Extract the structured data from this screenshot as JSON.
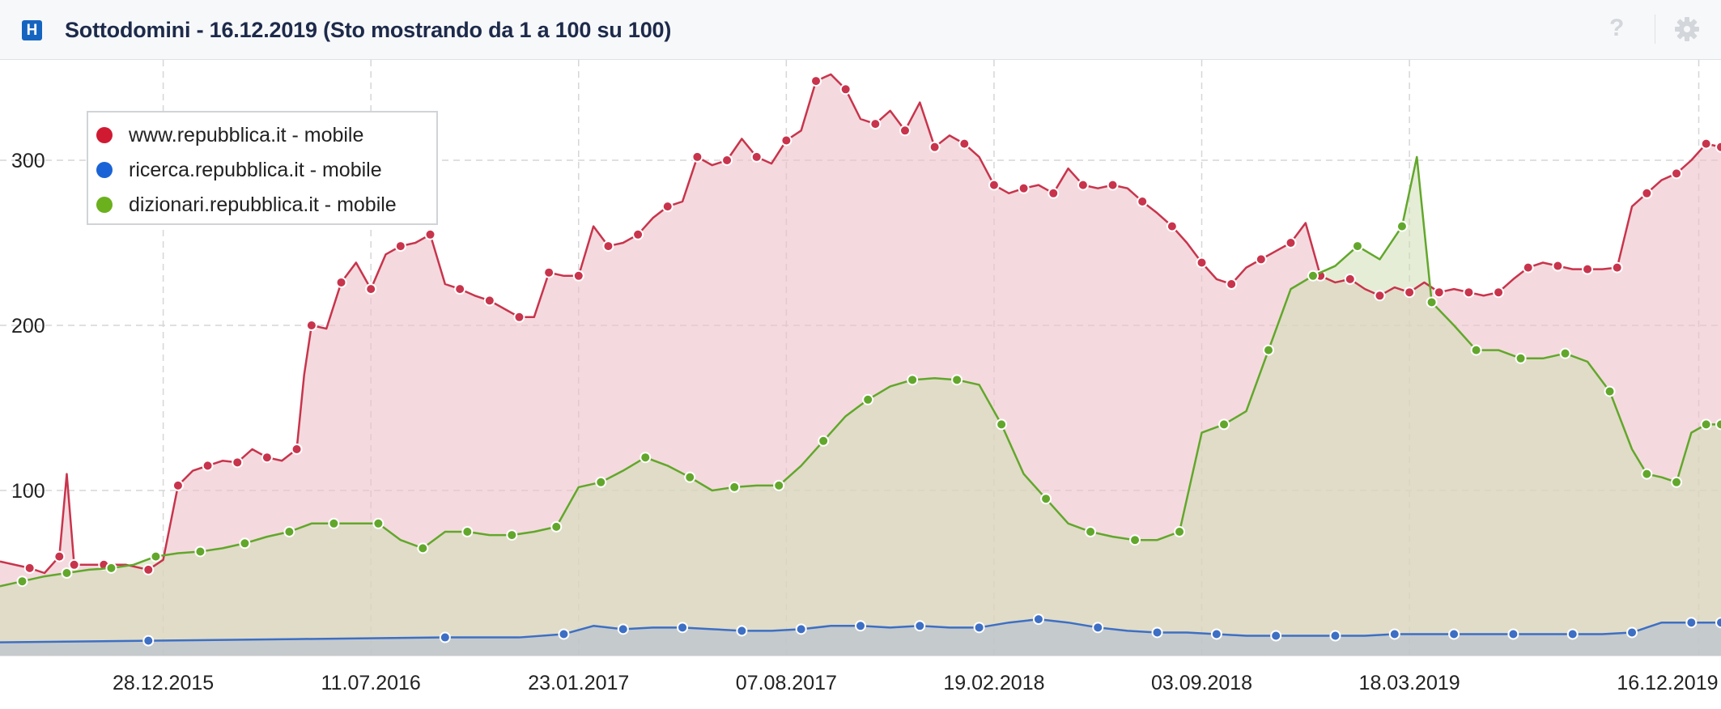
{
  "header": {
    "logo_letter": "H",
    "title": "Sottodomini - 16.12.2019 (Sto mostrando da 1 a 100 su 100)",
    "help_label": "?"
  },
  "colors": {
    "red": "#c8344c",
    "blue": "#3d6fc4",
    "green": "#62a72b",
    "red_dot": "#d01a32",
    "blue_dot": "#1a63d6",
    "green_dot": "#6bb01d"
  },
  "icons": {
    "logo": "logo-icon",
    "help": "help-icon",
    "settings": "gear-icon"
  },
  "chart_data": {
    "type": "area",
    "xlabel": "",
    "ylabel": "",
    "ylim": [
      0,
      350
    ],
    "yticks": [
      100,
      200,
      300
    ],
    "grid": true,
    "legend_position": "top-left",
    "xticks": [
      "28.12.2015",
      "11.07.2016",
      "23.01.2017",
      "07.08.2017",
      "19.02.2018",
      "03.09.2018",
      "18.03.2019",
      "16.12.2019"
    ],
    "xtick_weeks": [
      22,
      50,
      78,
      106,
      134,
      162,
      190,
      229
    ],
    "x_range_weeks": [
      0,
      232
    ],
    "series": [
      {
        "name": "www.repubblica.it - mobile",
        "points": [
          [
            0,
            57
          ],
          [
            4,
            53
          ],
          [
            6,
            50
          ],
          [
            8,
            60
          ],
          [
            9,
            110
          ],
          [
            10,
            55
          ],
          [
            12,
            55
          ],
          [
            14,
            55
          ],
          [
            17,
            55
          ],
          [
            20,
            52
          ],
          [
            22,
            58
          ],
          [
            24,
            103
          ],
          [
            26,
            112
          ],
          [
            28,
            115
          ],
          [
            30,
            118
          ],
          [
            32,
            117
          ],
          [
            34,
            125
          ],
          [
            36,
            120
          ],
          [
            38,
            118
          ],
          [
            40,
            125
          ],
          [
            41,
            170
          ],
          [
            42,
            200
          ],
          [
            44,
            198
          ],
          [
            46,
            226
          ],
          [
            48,
            238
          ],
          [
            50,
            222
          ],
          [
            52,
            243
          ],
          [
            54,
            248
          ],
          [
            56,
            250
          ],
          [
            58,
            255
          ],
          [
            60,
            225
          ],
          [
            62,
            222
          ],
          [
            64,
            218
          ],
          [
            66,
            215
          ],
          [
            68,
            210
          ],
          [
            70,
            205
          ],
          [
            72,
            205
          ],
          [
            74,
            232
          ],
          [
            76,
            230
          ],
          [
            78,
            230
          ],
          [
            80,
            260
          ],
          [
            82,
            248
          ],
          [
            84,
            250
          ],
          [
            86,
            255
          ],
          [
            88,
            265
          ],
          [
            90,
            272
          ],
          [
            92,
            275
          ],
          [
            94,
            302
          ],
          [
            96,
            297
          ],
          [
            98,
            300
          ],
          [
            100,
            313
          ],
          [
            102,
            302
          ],
          [
            104,
            298
          ],
          [
            106,
            312
          ],
          [
            108,
            318
          ],
          [
            110,
            348
          ],
          [
            112,
            352
          ],
          [
            114,
            343
          ],
          [
            116,
            325
          ],
          [
            118,
            322
          ],
          [
            120,
            330
          ],
          [
            122,
            318
          ],
          [
            124,
            335
          ],
          [
            126,
            308
          ],
          [
            128,
            315
          ],
          [
            130,
            310
          ],
          [
            132,
            302
          ],
          [
            134,
            285
          ],
          [
            136,
            280
          ],
          [
            138,
            283
          ],
          [
            140,
            285
          ],
          [
            142,
            280
          ],
          [
            144,
            295
          ],
          [
            146,
            285
          ],
          [
            148,
            283
          ],
          [
            150,
            285
          ],
          [
            152,
            283
          ],
          [
            154,
            275
          ],
          [
            156,
            268
          ],
          [
            158,
            260
          ],
          [
            160,
            250
          ],
          [
            162,
            238
          ],
          [
            164,
            228
          ],
          [
            166,
            225
          ],
          [
            168,
            235
          ],
          [
            170,
            240
          ],
          [
            172,
            245
          ],
          [
            174,
            250
          ],
          [
            176,
            262
          ],
          [
            178,
            230
          ],
          [
            180,
            226
          ],
          [
            182,
            228
          ],
          [
            184,
            222
          ],
          [
            186,
            218
          ],
          [
            188,
            223
          ],
          [
            190,
            220
          ],
          [
            192,
            226
          ],
          [
            194,
            220
          ],
          [
            196,
            222
          ],
          [
            198,
            220
          ],
          [
            200,
            218
          ],
          [
            202,
            220
          ],
          [
            204,
            228
          ],
          [
            206,
            235
          ],
          [
            208,
            238
          ],
          [
            210,
            236
          ],
          [
            212,
            234
          ],
          [
            214,
            234
          ],
          [
            216,
            234
          ],
          [
            218,
            235
          ],
          [
            220,
            272
          ],
          [
            222,
            280
          ],
          [
            224,
            288
          ],
          [
            226,
            292
          ],
          [
            228,
            300
          ],
          [
            230,
            310
          ],
          [
            232,
            308
          ]
        ]
      },
      {
        "name": "ricerca.repubblica.it - mobile",
        "points": [
          [
            0,
            8
          ],
          [
            20,
            9
          ],
          [
            40,
            10
          ],
          [
            60,
            11
          ],
          [
            70,
            11
          ],
          [
            76,
            13
          ],
          [
            80,
            18
          ],
          [
            84,
            16
          ],
          [
            88,
            17
          ],
          [
            92,
            17
          ],
          [
            96,
            16
          ],
          [
            100,
            15
          ],
          [
            104,
            15
          ],
          [
            108,
            16
          ],
          [
            112,
            18
          ],
          [
            116,
            18
          ],
          [
            120,
            17
          ],
          [
            124,
            18
          ],
          [
            128,
            17
          ],
          [
            132,
            17
          ],
          [
            136,
            20
          ],
          [
            140,
            22
          ],
          [
            144,
            20
          ],
          [
            148,
            17
          ],
          [
            152,
            15
          ],
          [
            156,
            14
          ],
          [
            160,
            14
          ],
          [
            164,
            13
          ],
          [
            168,
            12
          ],
          [
            172,
            12
          ],
          [
            176,
            12
          ],
          [
            180,
            12
          ],
          [
            184,
            12
          ],
          [
            188,
            13
          ],
          [
            192,
            13
          ],
          [
            196,
            13
          ],
          [
            200,
            13
          ],
          [
            204,
            13
          ],
          [
            208,
            13
          ],
          [
            212,
            13
          ],
          [
            216,
            13
          ],
          [
            220,
            14
          ],
          [
            224,
            20
          ],
          [
            228,
            20
          ],
          [
            232,
            20
          ]
        ]
      },
      {
        "name": "dizionari.repubblica.it - mobile",
        "points": [
          [
            0,
            42
          ],
          [
            3,
            45
          ],
          [
            6,
            48
          ],
          [
            9,
            50
          ],
          [
            12,
            52
          ],
          [
            15,
            53
          ],
          [
            18,
            55
          ],
          [
            21,
            60
          ],
          [
            24,
            62
          ],
          [
            27,
            63
          ],
          [
            30,
            65
          ],
          [
            33,
            68
          ],
          [
            36,
            72
          ],
          [
            39,
            75
          ],
          [
            42,
            80
          ],
          [
            45,
            80
          ],
          [
            48,
            80
          ],
          [
            51,
            80
          ],
          [
            54,
            70
          ],
          [
            57,
            65
          ],
          [
            60,
            75
          ],
          [
            63,
            75
          ],
          [
            66,
            73
          ],
          [
            69,
            73
          ],
          [
            72,
            75
          ],
          [
            75,
            78
          ],
          [
            78,
            102
          ],
          [
            81,
            105
          ],
          [
            84,
            112
          ],
          [
            87,
            120
          ],
          [
            90,
            115
          ],
          [
            93,
            108
          ],
          [
            96,
            100
          ],
          [
            99,
            102
          ],
          [
            102,
            103
          ],
          [
            105,
            103
          ],
          [
            108,
            115
          ],
          [
            111,
            130
          ],
          [
            114,
            145
          ],
          [
            117,
            155
          ],
          [
            120,
            163
          ],
          [
            123,
            167
          ],
          [
            126,
            168
          ],
          [
            129,
            167
          ],
          [
            132,
            164
          ],
          [
            135,
            140
          ],
          [
            138,
            110
          ],
          [
            141,
            95
          ],
          [
            144,
            80
          ],
          [
            147,
            75
          ],
          [
            150,
            72
          ],
          [
            153,
            70
          ],
          [
            156,
            70
          ],
          [
            159,
            75
          ],
          [
            162,
            135
          ],
          [
            165,
            140
          ],
          [
            168,
            148
          ],
          [
            171,
            185
          ],
          [
            174,
            222
          ],
          [
            177,
            230
          ],
          [
            180,
            236
          ],
          [
            183,
            248
          ],
          [
            186,
            240
          ],
          [
            189,
            260
          ],
          [
            191,
            302
          ],
          [
            193,
            214
          ],
          [
            196,
            200
          ],
          [
            199,
            185
          ],
          [
            202,
            185
          ],
          [
            205,
            180
          ],
          [
            208,
            180
          ],
          [
            211,
            183
          ],
          [
            214,
            178
          ],
          [
            217,
            160
          ],
          [
            220,
            125
          ],
          [
            222,
            110
          ],
          [
            224,
            108
          ],
          [
            226,
            105
          ],
          [
            228,
            135
          ],
          [
            230,
            140
          ],
          [
            232,
            140
          ]
        ]
      }
    ]
  }
}
